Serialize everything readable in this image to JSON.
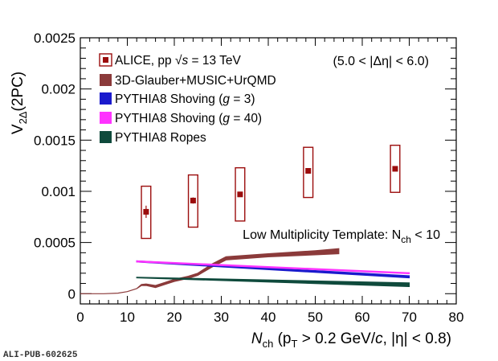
{
  "chart_data": {
    "type": "line",
    "xlim": [
      0,
      80
    ],
    "ylim": [
      -0.0001,
      0.0025
    ],
    "x_ticks": [
      "0",
      "10",
      "20",
      "30",
      "40",
      "50",
      "60",
      "70",
      "80"
    ],
    "y_ticks": [
      "0",
      "0.0005",
      "0.001",
      "0.0015",
      "0.002",
      "0.0025"
    ],
    "xlabel": {
      "main": "N",
      "main_sub": "ch",
      "rest1": " (p",
      "rest1_sub": "T",
      "rest2": " > 0.2 GeV/",
      "rest2_italic": "c",
      "rest3": ", |η| < 0.8)"
    },
    "ylabel": {
      "main": "V",
      "sub": "2Δ",
      "rest": "(2PC)"
    },
    "annotations": {
      "eta_range": "(5.0 < |Δη| < 6.0)",
      "template_main": "Low Multiplicity Template: N",
      "template_sub": "ch",
      "template_rest": " < 10"
    },
    "footer": "ALI-PUB-602625",
    "legend": [
      {
        "key": "alice",
        "label_a": "ALICE, pp ",
        "label_b": "√s",
        "label_c": " = 13 TeV",
        "color": "#8b1a1a"
      },
      {
        "key": "glauber",
        "label": "3D-Glauber+MUSIC+UrQMD",
        "color": "#8b3a3a"
      },
      {
        "key": "shove3",
        "label_a": "PYTHIA8 Shoving (",
        "label_b": "g",
        "label_c": " = 3)",
        "color": "#1a1acd"
      },
      {
        "key": "shove40",
        "label_a": "PYTHIA8 Shoving (",
        "label_b": "g",
        "label_c": " = 40)",
        "color": "#ff33ff"
      },
      {
        "key": "ropes",
        "label": "PYTHIA8 Ropes",
        "color": "#0f4a3c"
      }
    ],
    "series": [
      {
        "name": "ALICE, pp √s = 13 TeV",
        "type": "points",
        "color": "#9b0d0d",
        "x": [
          14.0,
          24.0,
          34.0,
          48.5,
          67.0
        ],
        "y": [
          0.0008,
          0.00091,
          0.00097,
          0.0012,
          0.00122
        ],
        "stat_err": [
          6e-05,
          3e-05,
          2e-05,
          2e-05,
          2e-05
        ],
        "syst_low": [
          0.00054,
          0.00065,
          0.00071,
          0.00094,
          0.00099
        ],
        "syst_high": [
          0.00105,
          0.00116,
          0.00123,
          0.00143,
          0.00145
        ],
        "syst_width": 2.0
      },
      {
        "name": "3D-Glauber+MUSIC+UrQMD",
        "type": "band",
        "color": "#8b3a3a",
        "x": [
          0,
          5,
          8,
          10,
          12,
          13,
          14,
          16,
          18,
          20,
          23,
          25,
          28,
          31,
          40,
          50,
          55
        ],
        "y_low": [
          0.0,
          0.0,
          5e-06,
          2e-05,
          5e-05,
          8e-05,
          8e-05,
          6e-05,
          9e-05,
          0.00012,
          0.00015,
          0.00018,
          0.00026,
          0.00033,
          0.00036,
          0.00038,
          0.00039
        ],
        "y_high": [
          0.0,
          0.0,
          5e-06,
          2e-05,
          5e-05,
          9e-05,
          9.5e-05,
          8e-05,
          0.00011,
          0.00014,
          0.00017,
          0.0002,
          0.00029,
          0.00036,
          0.00039,
          0.00042,
          0.00044
        ]
      },
      {
        "name": "PYTHIA8 Shoving (g = 3)",
        "type": "band",
        "color": "#1a1acd",
        "x": [
          12,
          70
        ],
        "y_low": [
          0.00031,
          0.000155
        ],
        "y_high": [
          0.00032,
          0.000175
        ]
      },
      {
        "name": "PYTHIA8 Shoving (g = 40)",
        "type": "band",
        "color": "#ff33ff",
        "x": [
          12,
          70
        ],
        "y_low": [
          0.00031,
          0.000195
        ],
        "y_high": [
          0.00032,
          0.000205
        ]
      },
      {
        "name": "PYTHIA8 Ropes",
        "type": "band",
        "color": "#0f4a3c",
        "x": [
          12,
          70
        ],
        "y_low": [
          0.000155,
          7e-05
        ],
        "y_high": [
          0.00016,
          0.000105
        ]
      }
    ]
  }
}
